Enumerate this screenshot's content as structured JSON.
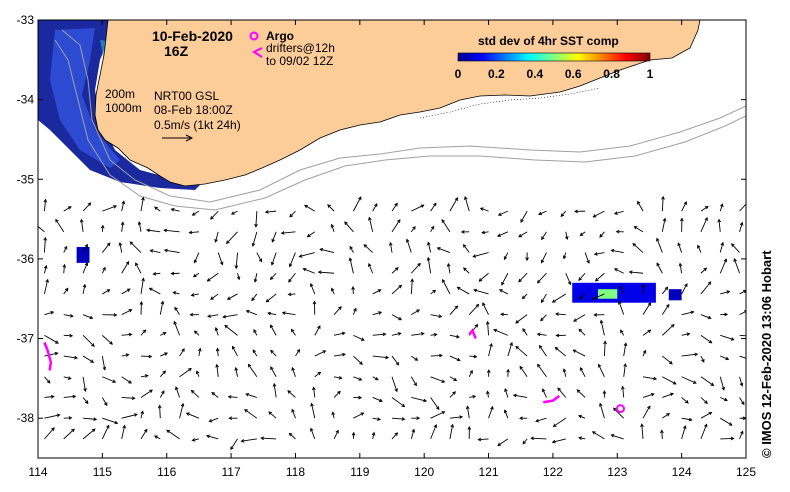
{
  "title": {
    "date": "10-Feb-2020",
    "hour": "16Z"
  },
  "legend": {
    "argo_label": "Argo",
    "drifters_label": "drifters@12h",
    "drifters_to": "to 09/02 12Z",
    "argo_color": "#ff00ff",
    "drifter_color": "#ff00ff"
  },
  "colorbar": {
    "title": "std dev of 4hr SST comp",
    "ticks": [
      "0",
      "0.2",
      "0.4",
      "0.6",
      "0.8",
      "1"
    ],
    "range": [
      0,
      1
    ]
  },
  "isobaths": {
    "label_200": "200m",
    "label_1000": "1000m",
    "color": "#a0a0a0"
  },
  "currents": {
    "product": "NRT00 GSL",
    "valid": "08-Feb 18:00Z",
    "scale_text": "0.5m/s (1kt 24h)"
  },
  "credit": "© IMOS 12-Feb-2020 13:06 Hobart",
  "land_color": "#fccc99",
  "chart_data": {
    "type": "map",
    "xlim": [
      114,
      125
    ],
    "ylim": [
      -38.5,
      -33
    ],
    "x_ticks": [
      "114",
      "115",
      "116",
      "117",
      "118",
      "119",
      "120",
      "121",
      "122",
      "123",
      "124",
      "125"
    ],
    "y_ticks": [
      "-33",
      "-34",
      "-35",
      "-36",
      "-37",
      "-38"
    ],
    "argo_floats": [
      {
        "lon": 123.05,
        "lat": -37.88
      }
    ],
    "drifter_tracks": [
      {
        "points": [
          [
            114.1,
            -37.05
          ],
          [
            114.15,
            -37.15
          ],
          [
            114.2,
            -37.3
          ],
          [
            114.18,
            -37.4
          ]
        ]
      },
      {
        "points": [
          [
            120.7,
            -36.95
          ],
          [
            120.75,
            -36.9
          ],
          [
            120.8,
            -37.0
          ]
        ]
      },
      {
        "points": [
          [
            121.85,
            -37.8
          ],
          [
            122.0,
            -37.78
          ],
          [
            122.1,
            -37.72
          ]
        ]
      }
    ],
    "sst_patches": [
      {
        "lon_min": 114.6,
        "lon_max": 114.8,
        "lat_min": -36.05,
        "lat_max": -35.85,
        "value": 0.05
      },
      {
        "lon_min": 122.3,
        "lon_max": 123.6,
        "lat_min": -36.55,
        "lat_max": -36.3,
        "value": 0.1
      },
      {
        "lon_min": 122.7,
        "lon_max": 123.0,
        "lat_min": -36.5,
        "lat_max": -36.38,
        "value": 0.5
      },
      {
        "lon_min": 123.8,
        "lon_max": 124.0,
        "lat_min": -36.52,
        "lat_max": -36.38,
        "value": 0.05
      }
    ]
  }
}
